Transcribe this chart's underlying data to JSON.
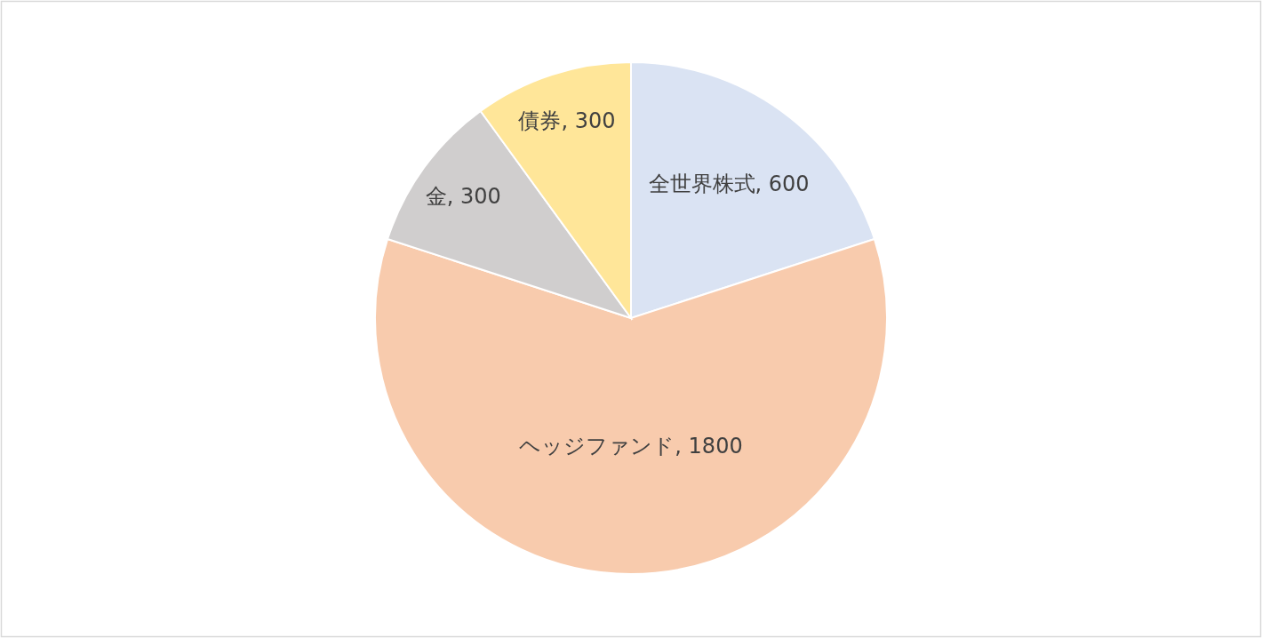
{
  "chart_data": {
    "type": "pie",
    "categories": [
      "全世界株式",
      "ヘッジファンド",
      "金",
      "債券"
    ],
    "values": [
      600,
      1800,
      300,
      300
    ],
    "value_labels": [
      ", 600",
      ", 1800",
      ", 300",
      ", 300"
    ],
    "colors": [
      "#dae3f3",
      "#f8cbad",
      "#d0cece",
      "#ffe699"
    ]
  }
}
